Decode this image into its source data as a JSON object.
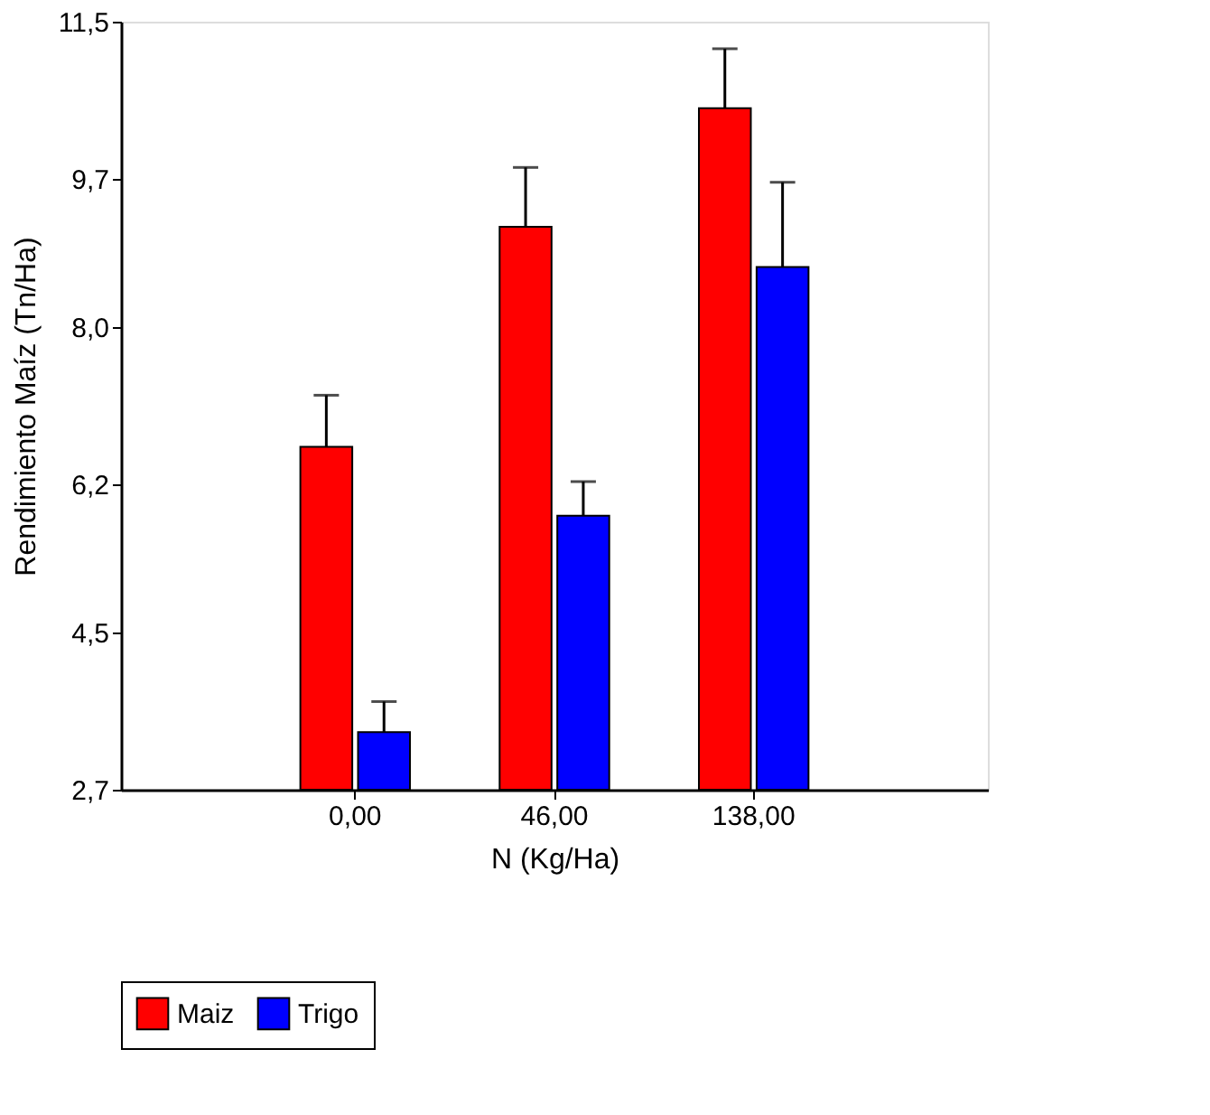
{
  "chart_data": {
    "type": "bar",
    "xlabel": "N (Kg/Ha)",
    "ylabel": "Rendimiento Maíz (Tn/Ha)",
    "categories": [
      "0,00",
      "46,00",
      "138,00"
    ],
    "series": [
      {
        "name": "Maiz",
        "color": "#ff0000",
        "values": [
          6.63,
          9.15,
          10.51
        ],
        "errors": [
          [
            6.63,
            7.22
          ],
          [
            9.15,
            9.83
          ],
          [
            10.51,
            11.19
          ]
        ]
      },
      {
        "name": "Trigo",
        "color": "#0000ff",
        "values": [
          3.36,
          5.84,
          8.69
        ],
        "errors": [
          [
            3.36,
            3.71
          ],
          [
            5.84,
            6.23
          ],
          [
            8.69,
            9.66
          ]
        ]
      }
    ],
    "ylim": [
      2.7,
      11.5
    ],
    "yticks": [
      {
        "value": 2.7,
        "label": "2,7"
      },
      {
        "value": 4.5,
        "label": "4,5"
      },
      {
        "value": 6.2,
        "label": "6,2"
      },
      {
        "value": 8.0,
        "label": "8,0"
      },
      {
        "value": 9.7,
        "label": "9,7"
      },
      {
        "value": 11.5,
        "label": "11,5"
      }
    ],
    "grid": false,
    "legend": "bottom"
  }
}
